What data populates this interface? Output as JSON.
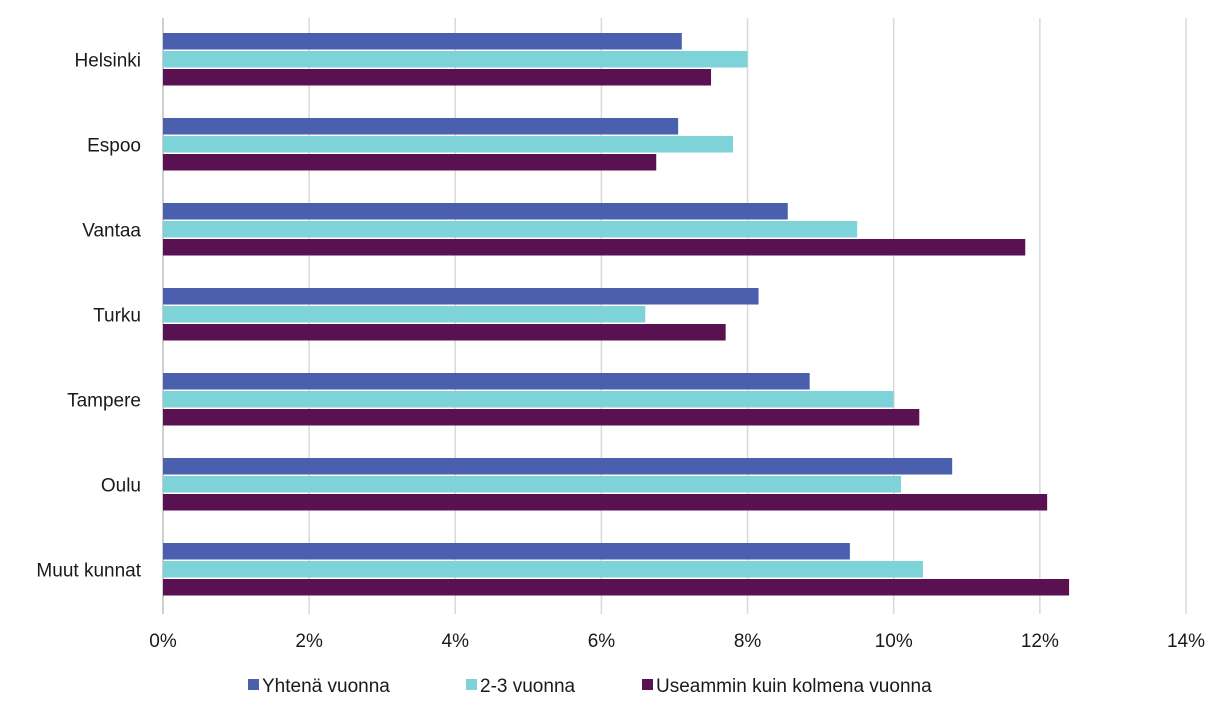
{
  "chart_data": {
    "type": "bar",
    "orientation": "horizontal",
    "categories": [
      "Helsinki",
      "Espoo",
      "Vantaa",
      "Turku",
      "Tampere",
      "Oulu",
      "Muut kunnat"
    ],
    "series": [
      {
        "name": "Yhtenä vuonna",
        "color": "#4a5fad",
        "values": [
          7.1,
          7.05,
          8.55,
          8.15,
          8.85,
          10.8,
          9.4
        ]
      },
      {
        "name": "2-3 vuonna",
        "color": "#7dd3d8",
        "values": [
          8.0,
          7.8,
          9.5,
          6.6,
          10.0,
          10.1,
          10.4
        ]
      },
      {
        "name": "Useammin kuin kolmena vuonna",
        "color": "#5a1152",
        "values": [
          7.5,
          6.75,
          11.8,
          7.7,
          10.35,
          12.1,
          12.4
        ]
      }
    ],
    "xlim": [
      0,
      14
    ],
    "xticks": [
      "0%",
      "2%",
      "4%",
      "6%",
      "8%",
      "10%",
      "12%",
      "14%"
    ],
    "grid": "vertical",
    "legend": "bottom"
  }
}
